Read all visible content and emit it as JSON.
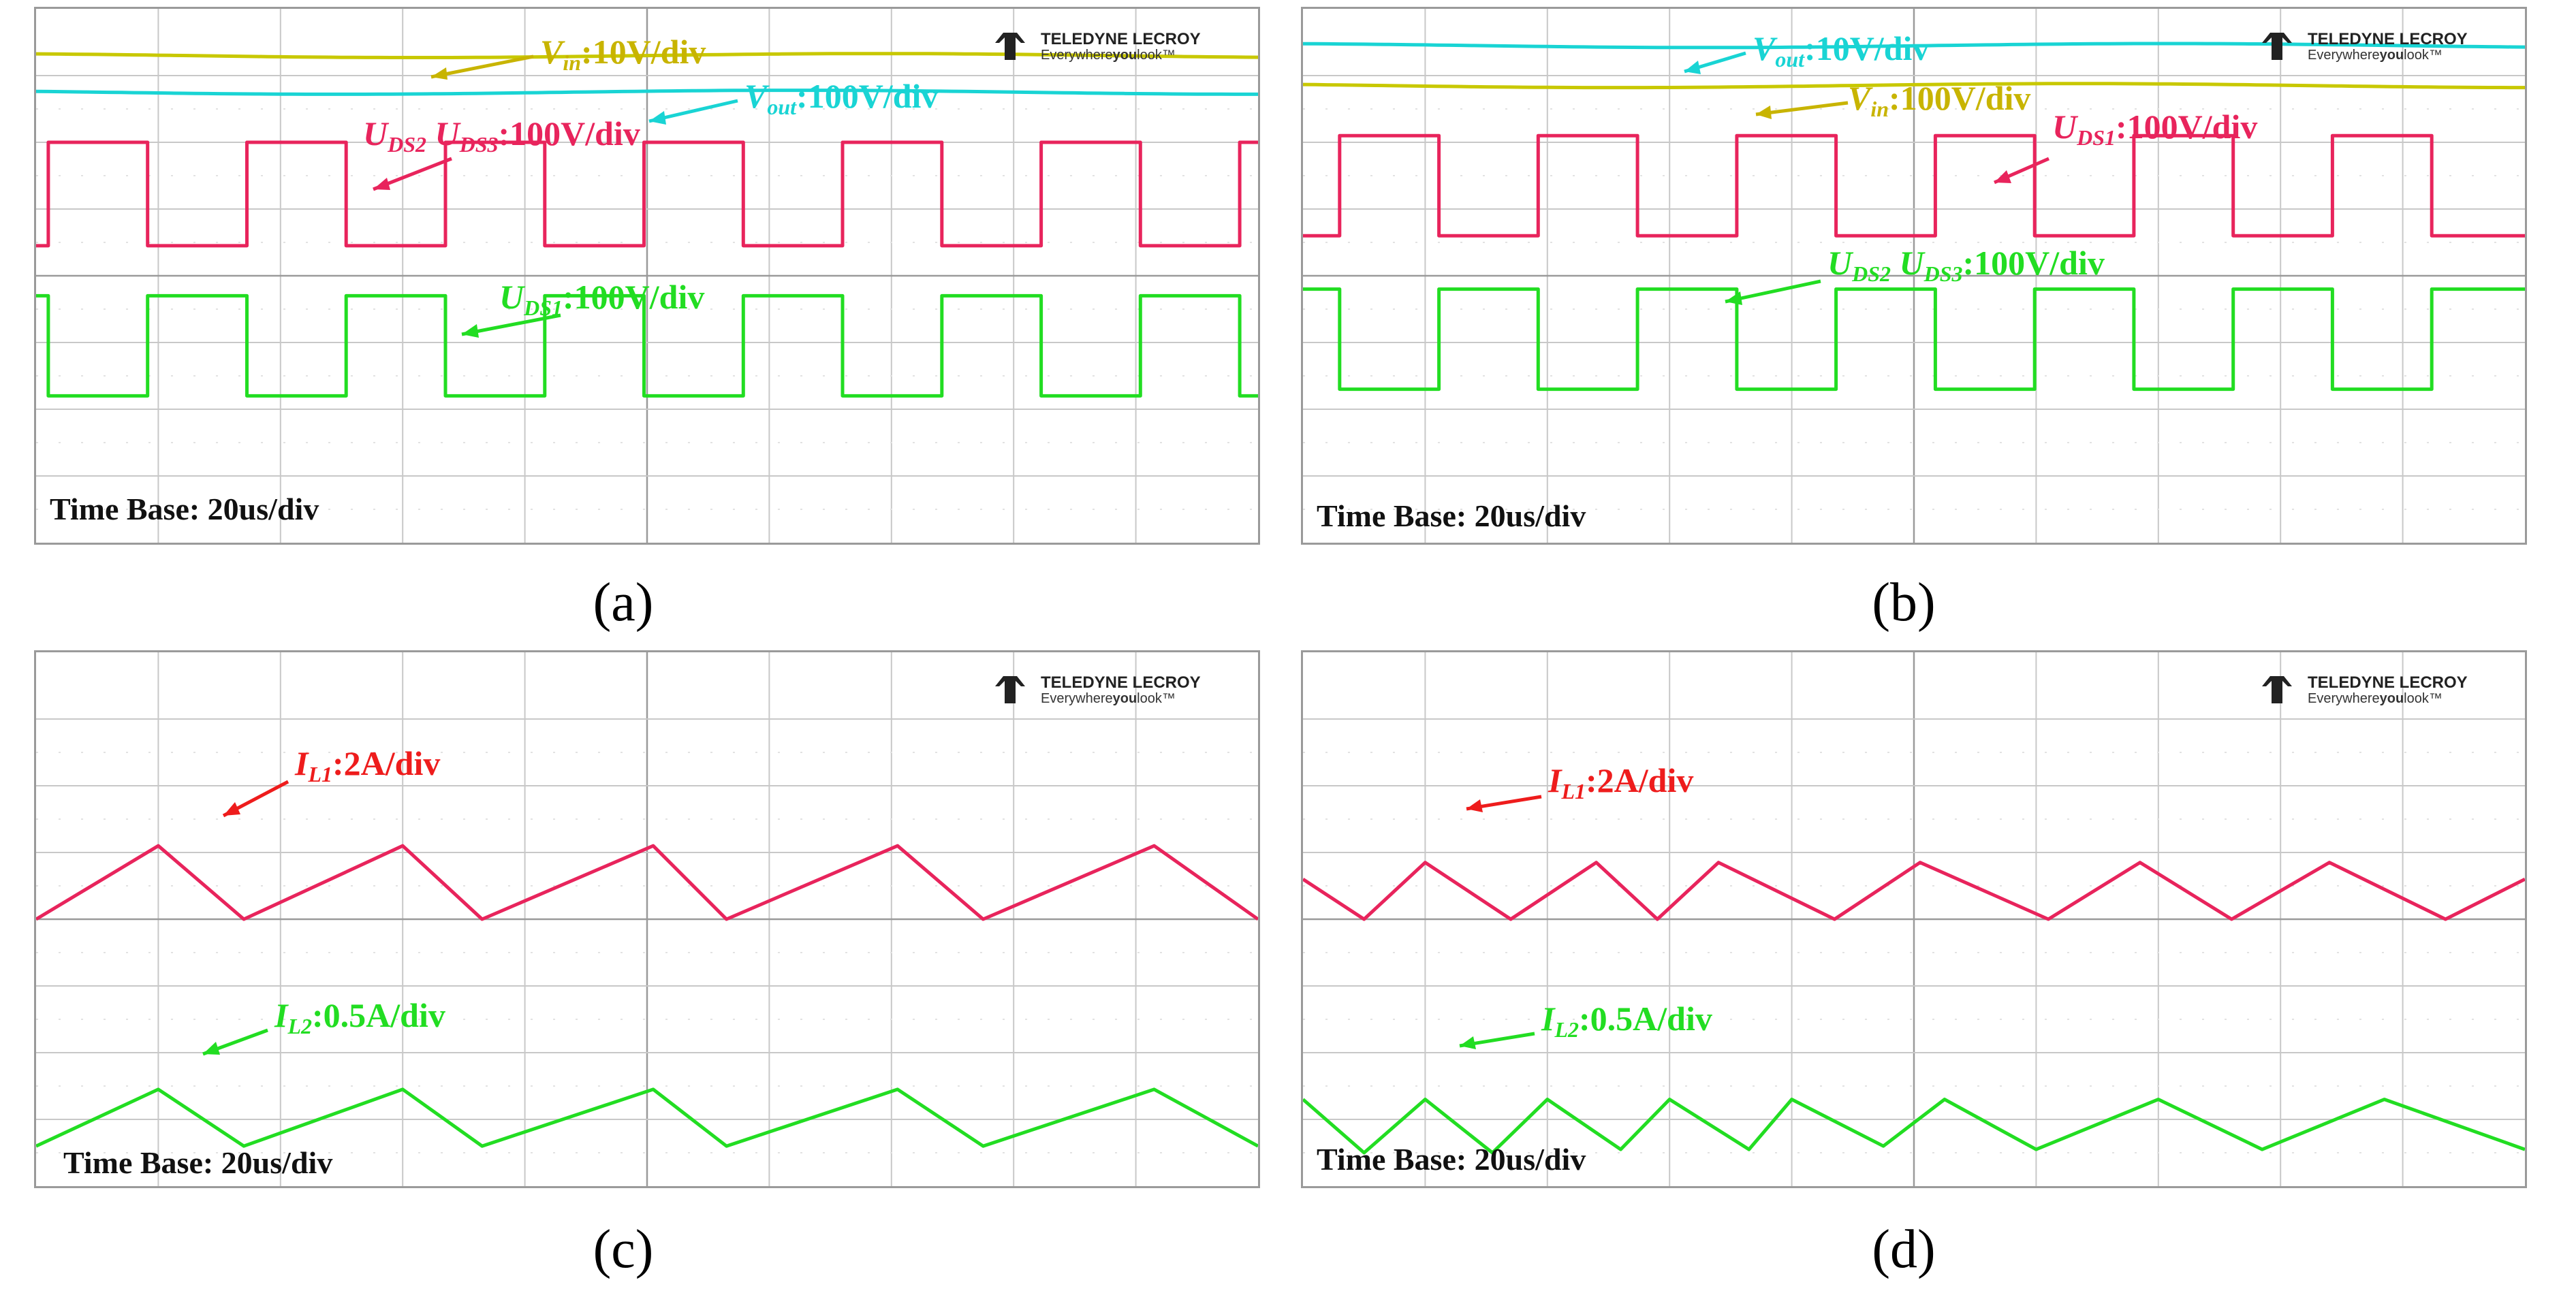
{
  "chart_data": [
    {
      "panel": "a",
      "type": "line",
      "caption": "(a)",
      "time_base": "Time Base: 20us/div",
      "brand": "TELEDYNE LECROY",
      "tagline": {
        "pre": "Everywhere",
        "bold": "you",
        "post": "look™"
      },
      "grid": {
        "x_divs": 10,
        "y_divs": 8
      },
      "x_range_us": [
        0,
        200
      ],
      "series": [
        {
          "name": "Vin",
          "color": "#c8c800",
          "kind": "flat",
          "level_div": 7.3
        },
        {
          "name": "Vout",
          "color": "#19d4d4",
          "kind": "flat",
          "level_div": 6.75
        },
        {
          "name": "UDS2 UDS3",
          "color": "#e8245c",
          "kind": "square",
          "high_div": 6.0,
          "low_div": 4.45,
          "period_us": 32.5,
          "start_us": 2,
          "high_first": true,
          "duty": 0.5
        },
        {
          "name": "UDS1",
          "color": "#22dd22",
          "kind": "square",
          "high_div": 3.7,
          "low_div": 2.2,
          "period_us": 32.5,
          "start_us": 2,
          "high_first": false,
          "duty": 0.5
        }
      ],
      "annotations": [
        {
          "main": "V",
          "sub": "in",
          "value": ":10V/div",
          "color": "#c8b400"
        },
        {
          "main": "V",
          "sub": "out",
          "value": ":100V/div",
          "color": "#19d4d4"
        },
        {
          "main": "U",
          "sub": "DS2",
          "main2": " U",
          "sub2": "DS3",
          "value": ":100V/div",
          "color": "#e8245c"
        },
        {
          "main": "U",
          "sub": "DS1",
          "value": ":100V/div",
          "color": "#22dd22"
        }
      ]
    },
    {
      "panel": "b",
      "type": "line",
      "caption": "(b)",
      "time_base": "Time Base: 20us/div",
      "brand": "TELEDYNE LECROY",
      "tagline": {
        "pre": "Everywhere",
        "bold": "you",
        "post": "look™"
      },
      "grid": {
        "x_divs": 10,
        "y_divs": 8
      },
      "x_range_us": [
        0,
        200
      ],
      "series": [
        {
          "name": "Vout",
          "color": "#19d4d4",
          "kind": "flat",
          "level_div": 7.45
        },
        {
          "name": "Vin",
          "color": "#c8c800",
          "kind": "flat",
          "level_div": 6.85
        },
        {
          "name": "UDS1",
          "color": "#e8245c",
          "kind": "square",
          "high_div": 6.1,
          "low_div": 4.6,
          "period_us": 32.5,
          "start_us": 6,
          "high_first": true,
          "duty": 0.5
        },
        {
          "name": "UDS2 UDS3",
          "color": "#22dd22",
          "kind": "square",
          "high_div": 3.8,
          "low_div": 2.3,
          "period_us": 32.5,
          "start_us": 6,
          "high_first": false,
          "duty": 0.5
        }
      ],
      "annotations": [
        {
          "main": "V",
          "sub": "out",
          "value": ":10V/div",
          "color": "#19d4d4"
        },
        {
          "main": "V",
          "sub": "in",
          "value": ":100V/div",
          "color": "#c8b400"
        },
        {
          "main": "U",
          "sub": "DS1",
          "value": ":100V/div",
          "color": "#e8245c"
        },
        {
          "main": "U",
          "sub": "DS2",
          "main2": " U",
          "sub2": "DS3",
          "value": ":100V/div",
          "color": "#22dd22"
        }
      ]
    },
    {
      "panel": "c",
      "type": "line",
      "caption": "(c)",
      "time_base": "Time Base: 20us/div",
      "brand": "TELEDYNE LECROY",
      "tagline": {
        "pre": "Everywhere",
        "bold": "you",
        "post": "look™"
      },
      "grid": {
        "x_divs": 10,
        "y_divs": 8
      },
      "x_range_us": [
        0,
        200
      ],
      "series": [
        {
          "name": "IL1",
          "color": "#e8245c",
          "kind": "triangle",
          "points_us": [
            [
              0,
              4.0
            ],
            [
              20,
              5.1
            ],
            [
              34,
              4.0
            ],
            [
              60,
              5.1
            ],
            [
              73,
              4.0
            ],
            [
              101,
              5.1
            ],
            [
              113,
              4.0
            ],
            [
              141,
              5.1
            ],
            [
              155,
              4.0
            ],
            [
              183,
              5.1
            ],
            [
              200,
              4.0
            ]
          ]
        },
        {
          "name": "IL2",
          "color": "#22dd22",
          "kind": "triangle",
          "points_us": [
            [
              0,
              0.6
            ],
            [
              20,
              1.45
            ],
            [
              34,
              0.6
            ],
            [
              60,
              1.45
            ],
            [
              73,
              0.6
            ],
            [
              101,
              1.45
            ],
            [
              113,
              0.6
            ],
            [
              141,
              1.45
            ],
            [
              155,
              0.6
            ],
            [
              183,
              1.45
            ],
            [
              200,
              0.6
            ]
          ]
        }
      ],
      "annotations": [
        {
          "main": "I",
          "sub": "L1",
          "value": ":2A/div",
          "color": "#ee1c1c"
        },
        {
          "main": "I",
          "sub": "L2",
          "value": ":0.5A/div",
          "color": "#22dd22"
        }
      ]
    },
    {
      "panel": "d",
      "type": "line",
      "caption": "(d)",
      "time_base": "Time Base: 20us/div",
      "brand": "TELEDYNE LECROY",
      "tagline": {
        "pre": "Everywhere",
        "bold": "you",
        "post": "look™"
      },
      "grid": {
        "x_divs": 10,
        "y_divs": 8
      },
      "x_range_us": [
        0,
        200
      ],
      "series": [
        {
          "name": "IL1",
          "color": "#e8245c",
          "kind": "triangle",
          "points_us": [
            [
              0,
              4.6
            ],
            [
              10,
              4.0
            ],
            [
              20,
              4.85
            ],
            [
              34,
              4.0
            ],
            [
              48,
              4.85
            ],
            [
              58,
              4.0
            ],
            [
              68,
              4.85
            ],
            [
              87,
              4.0
            ],
            [
              101,
              4.85
            ],
            [
              122,
              4.0
            ],
            [
              137,
              4.85
            ],
            [
              152,
              4.0
            ],
            [
              168,
              4.85
            ],
            [
              187,
              4.0
            ],
            [
              200,
              4.6
            ]
          ]
        },
        {
          "name": "IL2",
          "color": "#22dd22",
          "kind": "triangle",
          "points_us": [
            [
              0,
              1.3
            ],
            [
              10,
              0.5
            ],
            [
              20,
              1.3
            ],
            [
              31,
              0.5
            ],
            [
              40,
              1.3
            ],
            [
              52,
              0.55
            ],
            [
              60,
              1.3
            ],
            [
              73,
              0.55
            ],
            [
              80,
              1.3
            ],
            [
              95,
              0.6
            ],
            [
              105,
              1.3
            ],
            [
              120,
              0.55
            ],
            [
              140,
              1.3
            ],
            [
              157,
              0.55
            ],
            [
              177,
              1.3
            ],
            [
              200,
              0.55
            ]
          ]
        }
      ],
      "annotations": [
        {
          "main": "I",
          "sub": "L1",
          "value": ":2A/div",
          "color": "#ee1c1c"
        },
        {
          "main": "I",
          "sub": "L2",
          "value": ":0.5A/div",
          "color": "#22dd22"
        }
      ]
    }
  ]
}
